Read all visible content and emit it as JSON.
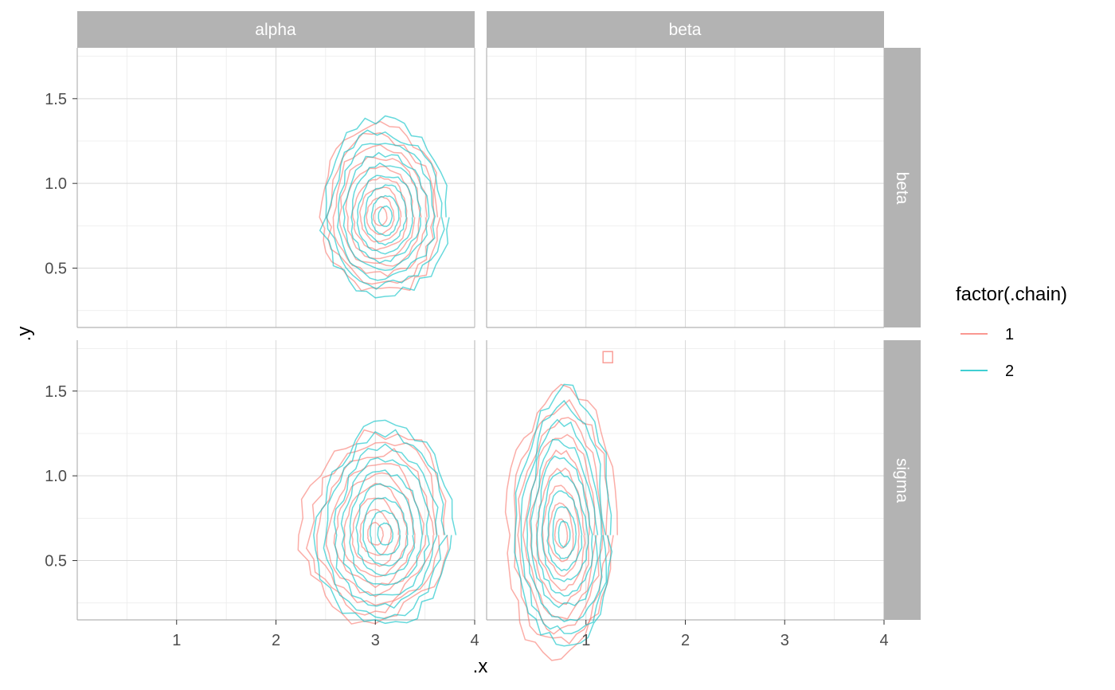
{
  "chart_data": {
    "type": "contour",
    "facet_columns": [
      "alpha",
      "beta"
    ],
    "facet_rows": [
      "beta",
      "sigma"
    ],
    "xlabel": ".x",
    "ylabel": ".y",
    "xlim": [
      0.0,
      4.0
    ],
    "ylim": [
      0.15,
      1.8
    ],
    "x_ticks": [
      1,
      2,
      3,
      4
    ],
    "x_tick_labels": [
      "1",
      "2",
      "3",
      "4"
    ],
    "y_ticks": [
      0.5,
      1.0,
      1.5
    ],
    "y_tick_labels": [
      "0.5",
      "1.0",
      "1.5"
    ],
    "grid": true,
    "legend": {
      "title": "factor(.chain)",
      "position": "right",
      "entries": [
        {
          "label": "1",
          "color": "#F8766D"
        },
        {
          "label": "2",
          "color": "#00BFC4"
        }
      ]
    },
    "panels": [
      {
        "col": "alpha",
        "row": "beta",
        "empty": false,
        "series": [
          {
            "chain": "1",
            "center": [
              3.05,
              0.8
            ],
            "spread": [
              0.6,
              0.52
            ],
            "levels": 9
          },
          {
            "chain": "2",
            "center": [
              3.1,
              0.8
            ],
            "spread": [
              0.62,
              0.55
            ],
            "levels": 9
          }
        ]
      },
      {
        "col": "beta",
        "row": "beta",
        "empty": true,
        "series": []
      },
      {
        "col": "alpha",
        "row": "sigma",
        "empty": false,
        "series": [
          {
            "chain": "1",
            "center": [
              3.0,
              0.65
            ],
            "spread": [
              0.72,
              0.6
            ],
            "levels": 9
          },
          {
            "chain": "2",
            "center": [
              3.1,
              0.65
            ],
            "spread": [
              0.68,
              0.62
            ],
            "levels": 9
          }
        ]
      },
      {
        "col": "beta",
        "row": "sigma",
        "empty": false,
        "series": [
          {
            "chain": "1",
            "center": [
              0.75,
              0.65
            ],
            "spread": [
              0.55,
              0.8
            ],
            "levels": 9,
            "isolated_point": [
              1.22,
              1.7
            ]
          },
          {
            "chain": "2",
            "center": [
              0.78,
              0.65
            ],
            "spread": [
              0.5,
              0.75
            ],
            "levels": 9
          }
        ]
      }
    ]
  }
}
